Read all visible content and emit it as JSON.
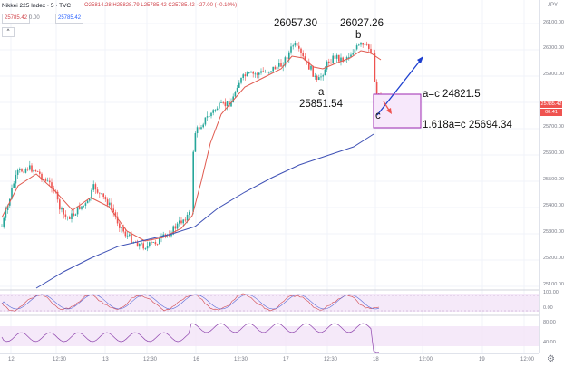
{
  "header": {
    "symbol": "Nikkei 225 Index · 5 · TVC",
    "ohlc": "O25814.28 H25828.79 L25785.42 C25785.42 −27.00 (−0.10%)",
    "price_a": "25785.42",
    "price_b": "25785.42",
    "value_mid": "0.00",
    "collapse_label": "^",
    "currency": "JPY"
  },
  "y_axis": {
    "ticks": [
      "26100.00",
      "26000.00",
      "25900.00",
      "25700.00",
      "25600.00",
      "25500.00",
      "25400.00",
      "25300.00",
      "25200.00",
      "25100.00"
    ],
    "price_tag": "25785.42",
    "timer_tag": "00:41"
  },
  "oscillators": {
    "upper_ticks": [
      "100.00",
      "0.00"
    ],
    "lower_ticks": [
      "80.00",
      "40.00"
    ]
  },
  "x_axis": {
    "ticks": [
      "12",
      "12:30",
      "13",
      "12:30",
      "16",
      "12:30",
      "17",
      "12:30",
      "18",
      "12:00",
      "19",
      "12:00"
    ]
  },
  "annotations": {
    "high1": "26057.30",
    "high2": "26027.26",
    "label_a": "a",
    "label_b": "b",
    "label_c": "c",
    "low_a": "25851.54",
    "target1": "a=c 24821.5",
    "target2": "1.618a=c 25694.34"
  },
  "colors": {
    "up": "#26a69a",
    "down": "#ef5350",
    "ma_short": "#e05a4f",
    "ma_long": "#3f51b5",
    "arrow_blue": "#1d3fcf",
    "box": "#9c27b0",
    "osc_fill": "#f3e3f7"
  }
}
